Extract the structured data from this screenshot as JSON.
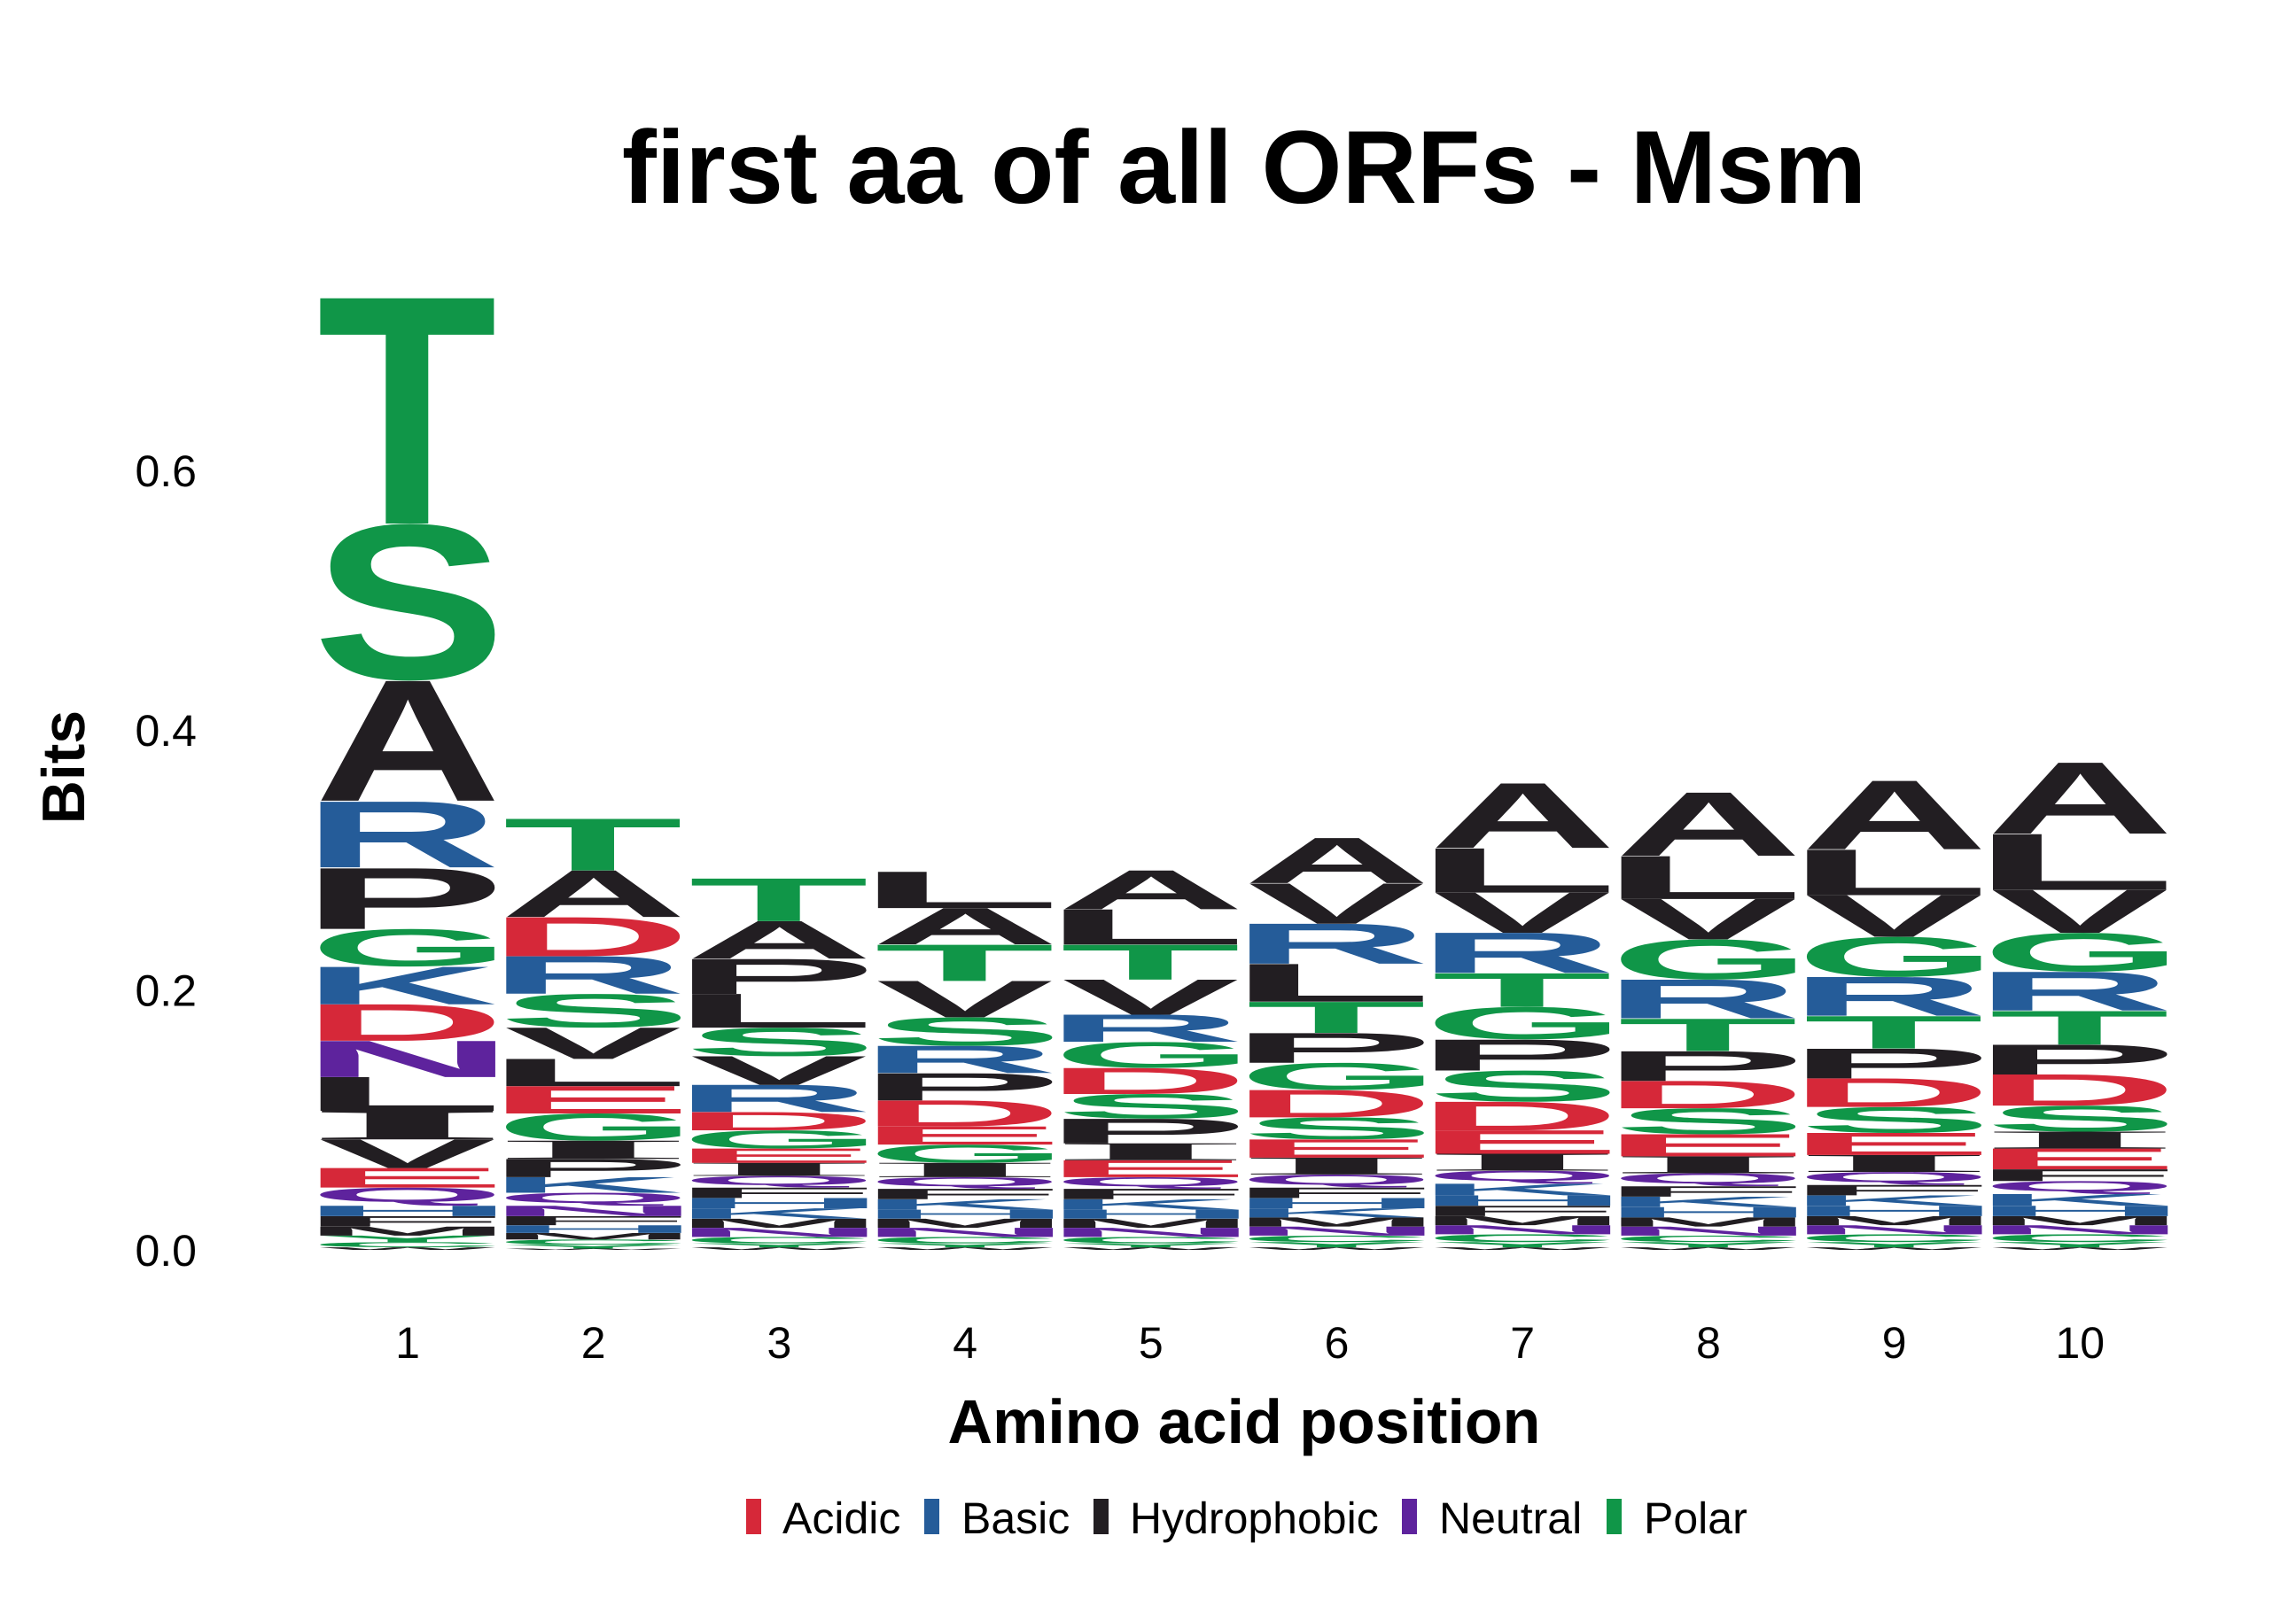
{
  "chart_data": {
    "type": "bar",
    "stacked": true,
    "title": "first aa of all ORFs - Msm",
    "xlabel": "Amino acid position",
    "ylabel": "Bits",
    "ylim": [
      0,
      0.74
    ],
    "yticks": [
      "0.0",
      "0.2",
      "0.4",
      "0.6"
    ],
    "categories": [
      1,
      2,
      3,
      4,
      5,
      6,
      7,
      8,
      9,
      10
    ],
    "grid": false,
    "legend_position": "bottom",
    "legend": [
      {
        "label": "Acidic",
        "color": "#D62839"
      },
      {
        "label": "Basic",
        "color": "#255C99"
      },
      {
        "label": "Hydrophobic",
        "color": "#221E22"
      },
      {
        "label": "Neutral",
        "color": "#5E239D"
      },
      {
        "label": "Polar",
        "color": "#109648"
      }
    ],
    "letter_colors": {
      "A": "#221E22",
      "V": "#221E22",
      "L": "#221E22",
      "I": "#221E22",
      "P": "#221E22",
      "W": "#221E22",
      "F": "#221E22",
      "M": "#221E22",
      "G": "#109648",
      "S": "#109648",
      "T": "#109648",
      "Y": "#109648",
      "C": "#109648",
      "N": "#5E239D",
      "Q": "#5E239D",
      "K": "#255C99",
      "R": "#255C99",
      "H": "#255C99",
      "D": "#D62839",
      "E": "#D62839"
    },
    "stacks": [
      [
        {
          "letter": "T",
          "bits": 0.175
        },
        {
          "letter": "S",
          "bits": 0.121
        },
        {
          "letter": "A",
          "bits": 0.093
        },
        {
          "letter": "R",
          "bits": 0.051
        },
        {
          "letter": "P",
          "bits": 0.047
        },
        {
          "letter": "G",
          "bits": 0.029
        },
        {
          "letter": "K",
          "bits": 0.029
        },
        {
          "letter": "D",
          "bits": 0.028
        },
        {
          "letter": "N",
          "bits": 0.028
        },
        {
          "letter": "L",
          "bits": 0.026
        },
        {
          "letter": "I",
          "bits": 0.022
        },
        {
          "letter": "V",
          "bits": 0.022
        },
        {
          "letter": "E",
          "bits": 0.015
        },
        {
          "letter": "Q",
          "bits": 0.014
        },
        {
          "letter": "H",
          "bits": 0.008
        },
        {
          "letter": "F",
          "bits": 0.008
        },
        {
          "letter": "M",
          "bits": 0.007
        },
        {
          "letter": "Y",
          "bits": 0.005
        },
        {
          "letter": "C",
          "bits": 0.004
        },
        {
          "letter": "W",
          "bits": 0.002
        }
      ],
      [
        {
          "letter": "T",
          "bits": 0.04
        },
        {
          "letter": "A",
          "bits": 0.036
        },
        {
          "letter": "D",
          "bits": 0.03
        },
        {
          "letter": "R",
          "bits": 0.029
        },
        {
          "letter": "S",
          "bits": 0.026
        },
        {
          "letter": "V",
          "bits": 0.024
        },
        {
          "letter": "L",
          "bits": 0.021
        },
        {
          "letter": "E",
          "bits": 0.021
        },
        {
          "letter": "G",
          "bits": 0.021
        },
        {
          "letter": "I",
          "bits": 0.014
        },
        {
          "letter": "P",
          "bits": 0.014
        },
        {
          "letter": "K",
          "bits": 0.012
        },
        {
          "letter": "Q",
          "bits": 0.01
        },
        {
          "letter": "N",
          "bits": 0.008
        },
        {
          "letter": "F",
          "bits": 0.007
        },
        {
          "letter": "H",
          "bits": 0.006
        },
        {
          "letter": "M",
          "bits": 0.005
        },
        {
          "letter": "C",
          "bits": 0.004
        },
        {
          "letter": "Y",
          "bits": 0.003
        },
        {
          "letter": "W",
          "bits": 0.001
        }
      ],
      [
        {
          "letter": "T",
          "bits": 0.033
        },
        {
          "letter": "A",
          "bits": 0.029
        },
        {
          "letter": "P",
          "bits": 0.027
        },
        {
          "letter": "L",
          "bits": 0.026
        },
        {
          "letter": "S",
          "bits": 0.022
        },
        {
          "letter": "V",
          "bits": 0.022
        },
        {
          "letter": "R",
          "bits": 0.021
        },
        {
          "letter": "D",
          "bits": 0.014
        },
        {
          "letter": "G",
          "bits": 0.014
        },
        {
          "letter": "E",
          "bits": 0.011
        },
        {
          "letter": "I",
          "bits": 0.01
        },
        {
          "letter": "Q",
          "bits": 0.009
        },
        {
          "letter": "F",
          "bits": 0.008
        },
        {
          "letter": "H",
          "bits": 0.008
        },
        {
          "letter": "K",
          "bits": 0.008
        },
        {
          "letter": "M",
          "bits": 0.007
        },
        {
          "letter": "N",
          "bits": 0.007
        },
        {
          "letter": "C",
          "bits": 0.005
        },
        {
          "letter": "Y",
          "bits": 0.003
        },
        {
          "letter": "W",
          "bits": 0.002
        }
      ],
      [
        {
          "letter": "L",
          "bits": 0.028
        },
        {
          "letter": "A",
          "bits": 0.028
        },
        {
          "letter": "T",
          "bits": 0.028
        },
        {
          "letter": "V",
          "bits": 0.028
        },
        {
          "letter": "S",
          "bits": 0.022
        },
        {
          "letter": "R",
          "bits": 0.021
        },
        {
          "letter": "P",
          "bits": 0.021
        },
        {
          "letter": "D",
          "bits": 0.02
        },
        {
          "letter": "E",
          "bits": 0.014
        },
        {
          "letter": "G",
          "bits": 0.014
        },
        {
          "letter": "I",
          "bits": 0.011
        },
        {
          "letter": "Q",
          "bits": 0.009
        },
        {
          "letter": "F",
          "bits": 0.008
        },
        {
          "letter": "K",
          "bits": 0.008
        },
        {
          "letter": "H",
          "bits": 0.007
        },
        {
          "letter": "M",
          "bits": 0.007
        },
        {
          "letter": "N",
          "bits": 0.007
        },
        {
          "letter": "C",
          "bits": 0.005
        },
        {
          "letter": "Y",
          "bits": 0.003
        },
        {
          "letter": "W",
          "bits": 0.002
        }
      ],
      [
        {
          "letter": "A",
          "bits": 0.03
        },
        {
          "letter": "L",
          "bits": 0.027
        },
        {
          "letter": "T",
          "bits": 0.027
        },
        {
          "letter": "V",
          "bits": 0.027
        },
        {
          "letter": "R",
          "bits": 0.021
        },
        {
          "letter": "G",
          "bits": 0.02
        },
        {
          "letter": "D",
          "bits": 0.02
        },
        {
          "letter": "S",
          "bits": 0.019
        },
        {
          "letter": "P",
          "bits": 0.019
        },
        {
          "letter": "I",
          "bits": 0.013
        },
        {
          "letter": "E",
          "bits": 0.013
        },
        {
          "letter": "Q",
          "bits": 0.009
        },
        {
          "letter": "F",
          "bits": 0.008
        },
        {
          "letter": "K",
          "bits": 0.008
        },
        {
          "letter": "H",
          "bits": 0.007
        },
        {
          "letter": "M",
          "bits": 0.007
        },
        {
          "letter": "N",
          "bits": 0.007
        },
        {
          "letter": "C",
          "bits": 0.005
        },
        {
          "letter": "Y",
          "bits": 0.003
        },
        {
          "letter": "W",
          "bits": 0.002
        }
      ],
      [
        {
          "letter": "A",
          "bits": 0.035
        },
        {
          "letter": "V",
          "bits": 0.031
        },
        {
          "letter": "R",
          "bits": 0.031
        },
        {
          "letter": "L",
          "bits": 0.029
        },
        {
          "letter": "T",
          "bits": 0.024
        },
        {
          "letter": "P",
          "bits": 0.023
        },
        {
          "letter": "G",
          "bits": 0.021
        },
        {
          "letter": "D",
          "bits": 0.021
        },
        {
          "letter": "S",
          "bits": 0.017
        },
        {
          "letter": "E",
          "bits": 0.014
        },
        {
          "letter": "I",
          "bits": 0.013
        },
        {
          "letter": "Q",
          "bits": 0.01
        },
        {
          "letter": "F",
          "bits": 0.008
        },
        {
          "letter": "H",
          "bits": 0.008
        },
        {
          "letter": "K",
          "bits": 0.007
        },
        {
          "letter": "M",
          "bits": 0.007
        },
        {
          "letter": "N",
          "bits": 0.007
        },
        {
          "letter": "C",
          "bits": 0.005
        },
        {
          "letter": "Y",
          "bits": 0.004
        },
        {
          "letter": "W",
          "bits": 0.002
        }
      ],
      [
        {
          "letter": "A",
          "bits": 0.05
        },
        {
          "letter": "L",
          "bits": 0.034
        },
        {
          "letter": "V",
          "bits": 0.031
        },
        {
          "letter": "R",
          "bits": 0.031
        },
        {
          "letter": "T",
          "bits": 0.026
        },
        {
          "letter": "G",
          "bits": 0.025
        },
        {
          "letter": "P",
          "bits": 0.024
        },
        {
          "letter": "S",
          "bits": 0.024
        },
        {
          "letter": "D",
          "bits": 0.022
        },
        {
          "letter": "E",
          "bits": 0.018
        },
        {
          "letter": "I",
          "bits": 0.013
        },
        {
          "letter": "Q",
          "bits": 0.01
        },
        {
          "letter": "K",
          "bits": 0.009
        },
        {
          "letter": "H",
          "bits": 0.008
        },
        {
          "letter": "F",
          "bits": 0.008
        },
        {
          "letter": "M",
          "bits": 0.007
        },
        {
          "letter": "N",
          "bits": 0.007
        },
        {
          "letter": "C",
          "bits": 0.006
        },
        {
          "letter": "Y",
          "bits": 0.004
        },
        {
          "letter": "W",
          "bits": 0.002
        }
      ],
      [
        {
          "letter": "A",
          "bits": 0.049
        },
        {
          "letter": "L",
          "bits": 0.033
        },
        {
          "letter": "V",
          "bits": 0.031
        },
        {
          "letter": "G",
          "bits": 0.031
        },
        {
          "letter": "R",
          "bits": 0.03
        },
        {
          "letter": "T",
          "bits": 0.025
        },
        {
          "letter": "P",
          "bits": 0.023
        },
        {
          "letter": "D",
          "bits": 0.021
        },
        {
          "letter": "S",
          "bits": 0.02
        },
        {
          "letter": "E",
          "bits": 0.017
        },
        {
          "letter": "I",
          "bits": 0.013
        },
        {
          "letter": "Q",
          "bits": 0.01
        },
        {
          "letter": "F",
          "bits": 0.008
        },
        {
          "letter": "K",
          "bits": 0.008
        },
        {
          "letter": "H",
          "bits": 0.008
        },
        {
          "letter": "M",
          "bits": 0.007
        },
        {
          "letter": "N",
          "bits": 0.007
        },
        {
          "letter": "C",
          "bits": 0.005
        },
        {
          "letter": "Y",
          "bits": 0.004
        },
        {
          "letter": "W",
          "bits": 0.002
        }
      ],
      [
        {
          "letter": "A",
          "bits": 0.053
        },
        {
          "letter": "L",
          "bits": 0.035
        },
        {
          "letter": "V",
          "bits": 0.032
        },
        {
          "letter": "G",
          "bits": 0.031
        },
        {
          "letter": "R",
          "bits": 0.03
        },
        {
          "letter": "T",
          "bits": 0.025
        },
        {
          "letter": "P",
          "bits": 0.023
        },
        {
          "letter": "D",
          "bits": 0.022
        },
        {
          "letter": "S",
          "bits": 0.02
        },
        {
          "letter": "E",
          "bits": 0.017
        },
        {
          "letter": "I",
          "bits": 0.013
        },
        {
          "letter": "Q",
          "bits": 0.01
        },
        {
          "letter": "F",
          "bits": 0.008
        },
        {
          "letter": "K",
          "bits": 0.008
        },
        {
          "letter": "H",
          "bits": 0.008
        },
        {
          "letter": "M",
          "bits": 0.007
        },
        {
          "letter": "N",
          "bits": 0.007
        },
        {
          "letter": "C",
          "bits": 0.006
        },
        {
          "letter": "Y",
          "bits": 0.004
        },
        {
          "letter": "W",
          "bits": 0.002
        }
      ],
      [
        {
          "letter": "A",
          "bits": 0.055
        },
        {
          "letter": "L",
          "bits": 0.043
        },
        {
          "letter": "V",
          "bits": 0.033
        },
        {
          "letter": "G",
          "bits": 0.03
        },
        {
          "letter": "R",
          "bits": 0.03
        },
        {
          "letter": "T",
          "bits": 0.026
        },
        {
          "letter": "P",
          "bits": 0.023
        },
        {
          "letter": "D",
          "bits": 0.024
        },
        {
          "letter": "S",
          "bits": 0.02
        },
        {
          "letter": "I",
          "bits": 0.013
        },
        {
          "letter": "E",
          "bits": 0.016
        },
        {
          "letter": "F",
          "bits": 0.009
        },
        {
          "letter": "Q",
          "bits": 0.01
        },
        {
          "letter": "K",
          "bits": 0.009
        },
        {
          "letter": "H",
          "bits": 0.008
        },
        {
          "letter": "M",
          "bits": 0.007
        },
        {
          "letter": "N",
          "bits": 0.007
        },
        {
          "letter": "C",
          "bits": 0.006
        },
        {
          "letter": "Y",
          "bits": 0.004
        },
        {
          "letter": "W",
          "bits": 0.002
        }
      ]
    ]
  }
}
